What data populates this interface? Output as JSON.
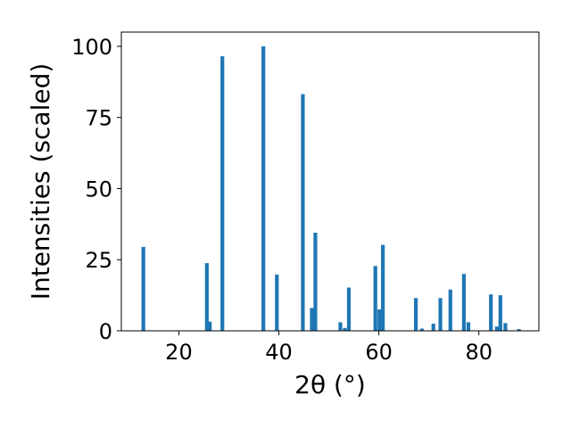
{
  "chart_data": {
    "type": "bar",
    "xlabel": "2θ (°)",
    "ylabel": "Intensities (scaled)",
    "xlim": [
      8.5,
      92.0
    ],
    "ylim": [
      0,
      105
    ],
    "xticks": [
      20,
      40,
      60,
      80
    ],
    "yticks": [
      0,
      25,
      50,
      75,
      100
    ],
    "bar_color": "#1f77b4",
    "grid": false,
    "points": [
      {
        "x": 12.9,
        "y": 29.5
      },
      {
        "x": 25.6,
        "y": 23.8
      },
      {
        "x": 26.2,
        "y": 3.2
      },
      {
        "x": 28.7,
        "y": 96.5
      },
      {
        "x": 36.9,
        "y": 100.0
      },
      {
        "x": 39.6,
        "y": 19.8
      },
      {
        "x": 44.8,
        "y": 83.2
      },
      {
        "x": 46.6,
        "y": 8.0
      },
      {
        "x": 47.3,
        "y": 34.5
      },
      {
        "x": 52.3,
        "y": 3.0
      },
      {
        "x": 53.2,
        "y": 1.0
      },
      {
        "x": 54.0,
        "y": 15.2
      },
      {
        "x": 59.3,
        "y": 22.8
      },
      {
        "x": 60.1,
        "y": 7.5
      },
      {
        "x": 60.8,
        "y": 30.2
      },
      {
        "x": 67.4,
        "y": 11.5
      },
      {
        "x": 68.6,
        "y": 0.8
      },
      {
        "x": 70.9,
        "y": 2.5
      },
      {
        "x": 72.3,
        "y": 11.5
      },
      {
        "x": 74.3,
        "y": 14.5
      },
      {
        "x": 77.0,
        "y": 20.0
      },
      {
        "x": 77.9,
        "y": 3.0
      },
      {
        "x": 82.4,
        "y": 12.8
      },
      {
        "x": 83.6,
        "y": 1.5
      },
      {
        "x": 84.3,
        "y": 12.5
      },
      {
        "x": 85.3,
        "y": 2.7
      },
      {
        "x": 88.0,
        "y": 0.6
      }
    ]
  }
}
